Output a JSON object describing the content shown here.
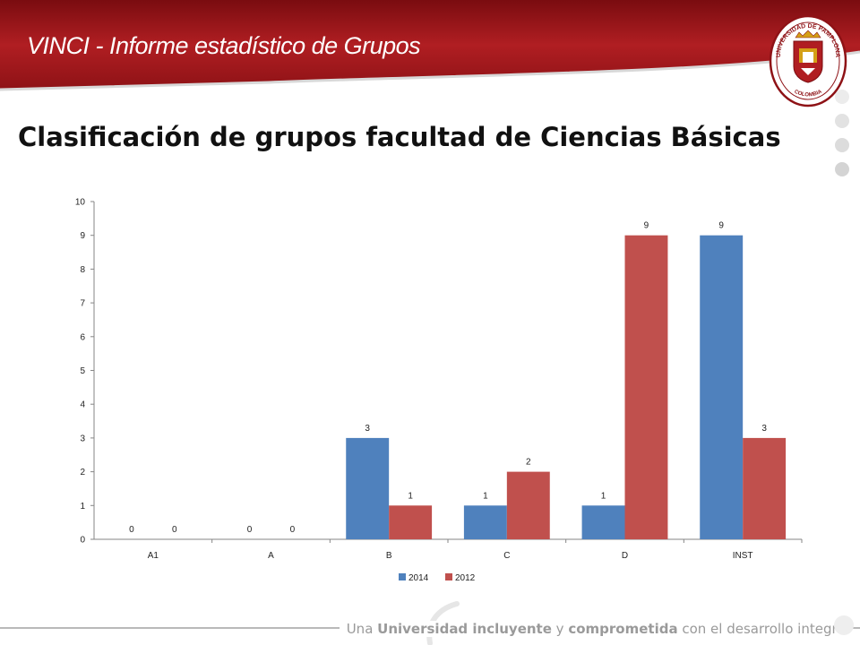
{
  "header": {
    "title": "VINCI - Informe estadístico de Grupos"
  },
  "logo": {
    "top_text": "UNIVERSIDAD DE PAMPLONA",
    "bottom_text": "COLOMBIA"
  },
  "slide": {
    "title": "Clasificación de grupos facultad de Ciencias Básicas"
  },
  "footer": {
    "part1": "Una ",
    "part2": "Universidad incluyente",
    "part3": " y ",
    "part4": "comprometida",
    "part5": " con el desarrollo integral"
  },
  "colors": {
    "header": "#a4161a",
    "series_2014": "#4f81bd",
    "series_2012": "#c0504d"
  },
  "chart_data": {
    "type": "bar",
    "title": "",
    "categories": [
      "A1",
      "A",
      "B",
      "C",
      "D",
      "INST"
    ],
    "series": [
      {
        "name": "2014",
        "color": "#4f81bd",
        "values": [
          0,
          0,
          3,
          1,
          1,
          9
        ]
      },
      {
        "name": "2012",
        "color": "#c0504d",
        "values": [
          0,
          0,
          1,
          2,
          9,
          3
        ]
      }
    ],
    "ylim": [
      0,
      10
    ],
    "yticks": [
      0,
      1,
      2,
      3,
      4,
      5,
      6,
      7,
      8,
      9,
      10
    ],
    "data_labels": true,
    "legend": "bottom",
    "grid": false
  }
}
